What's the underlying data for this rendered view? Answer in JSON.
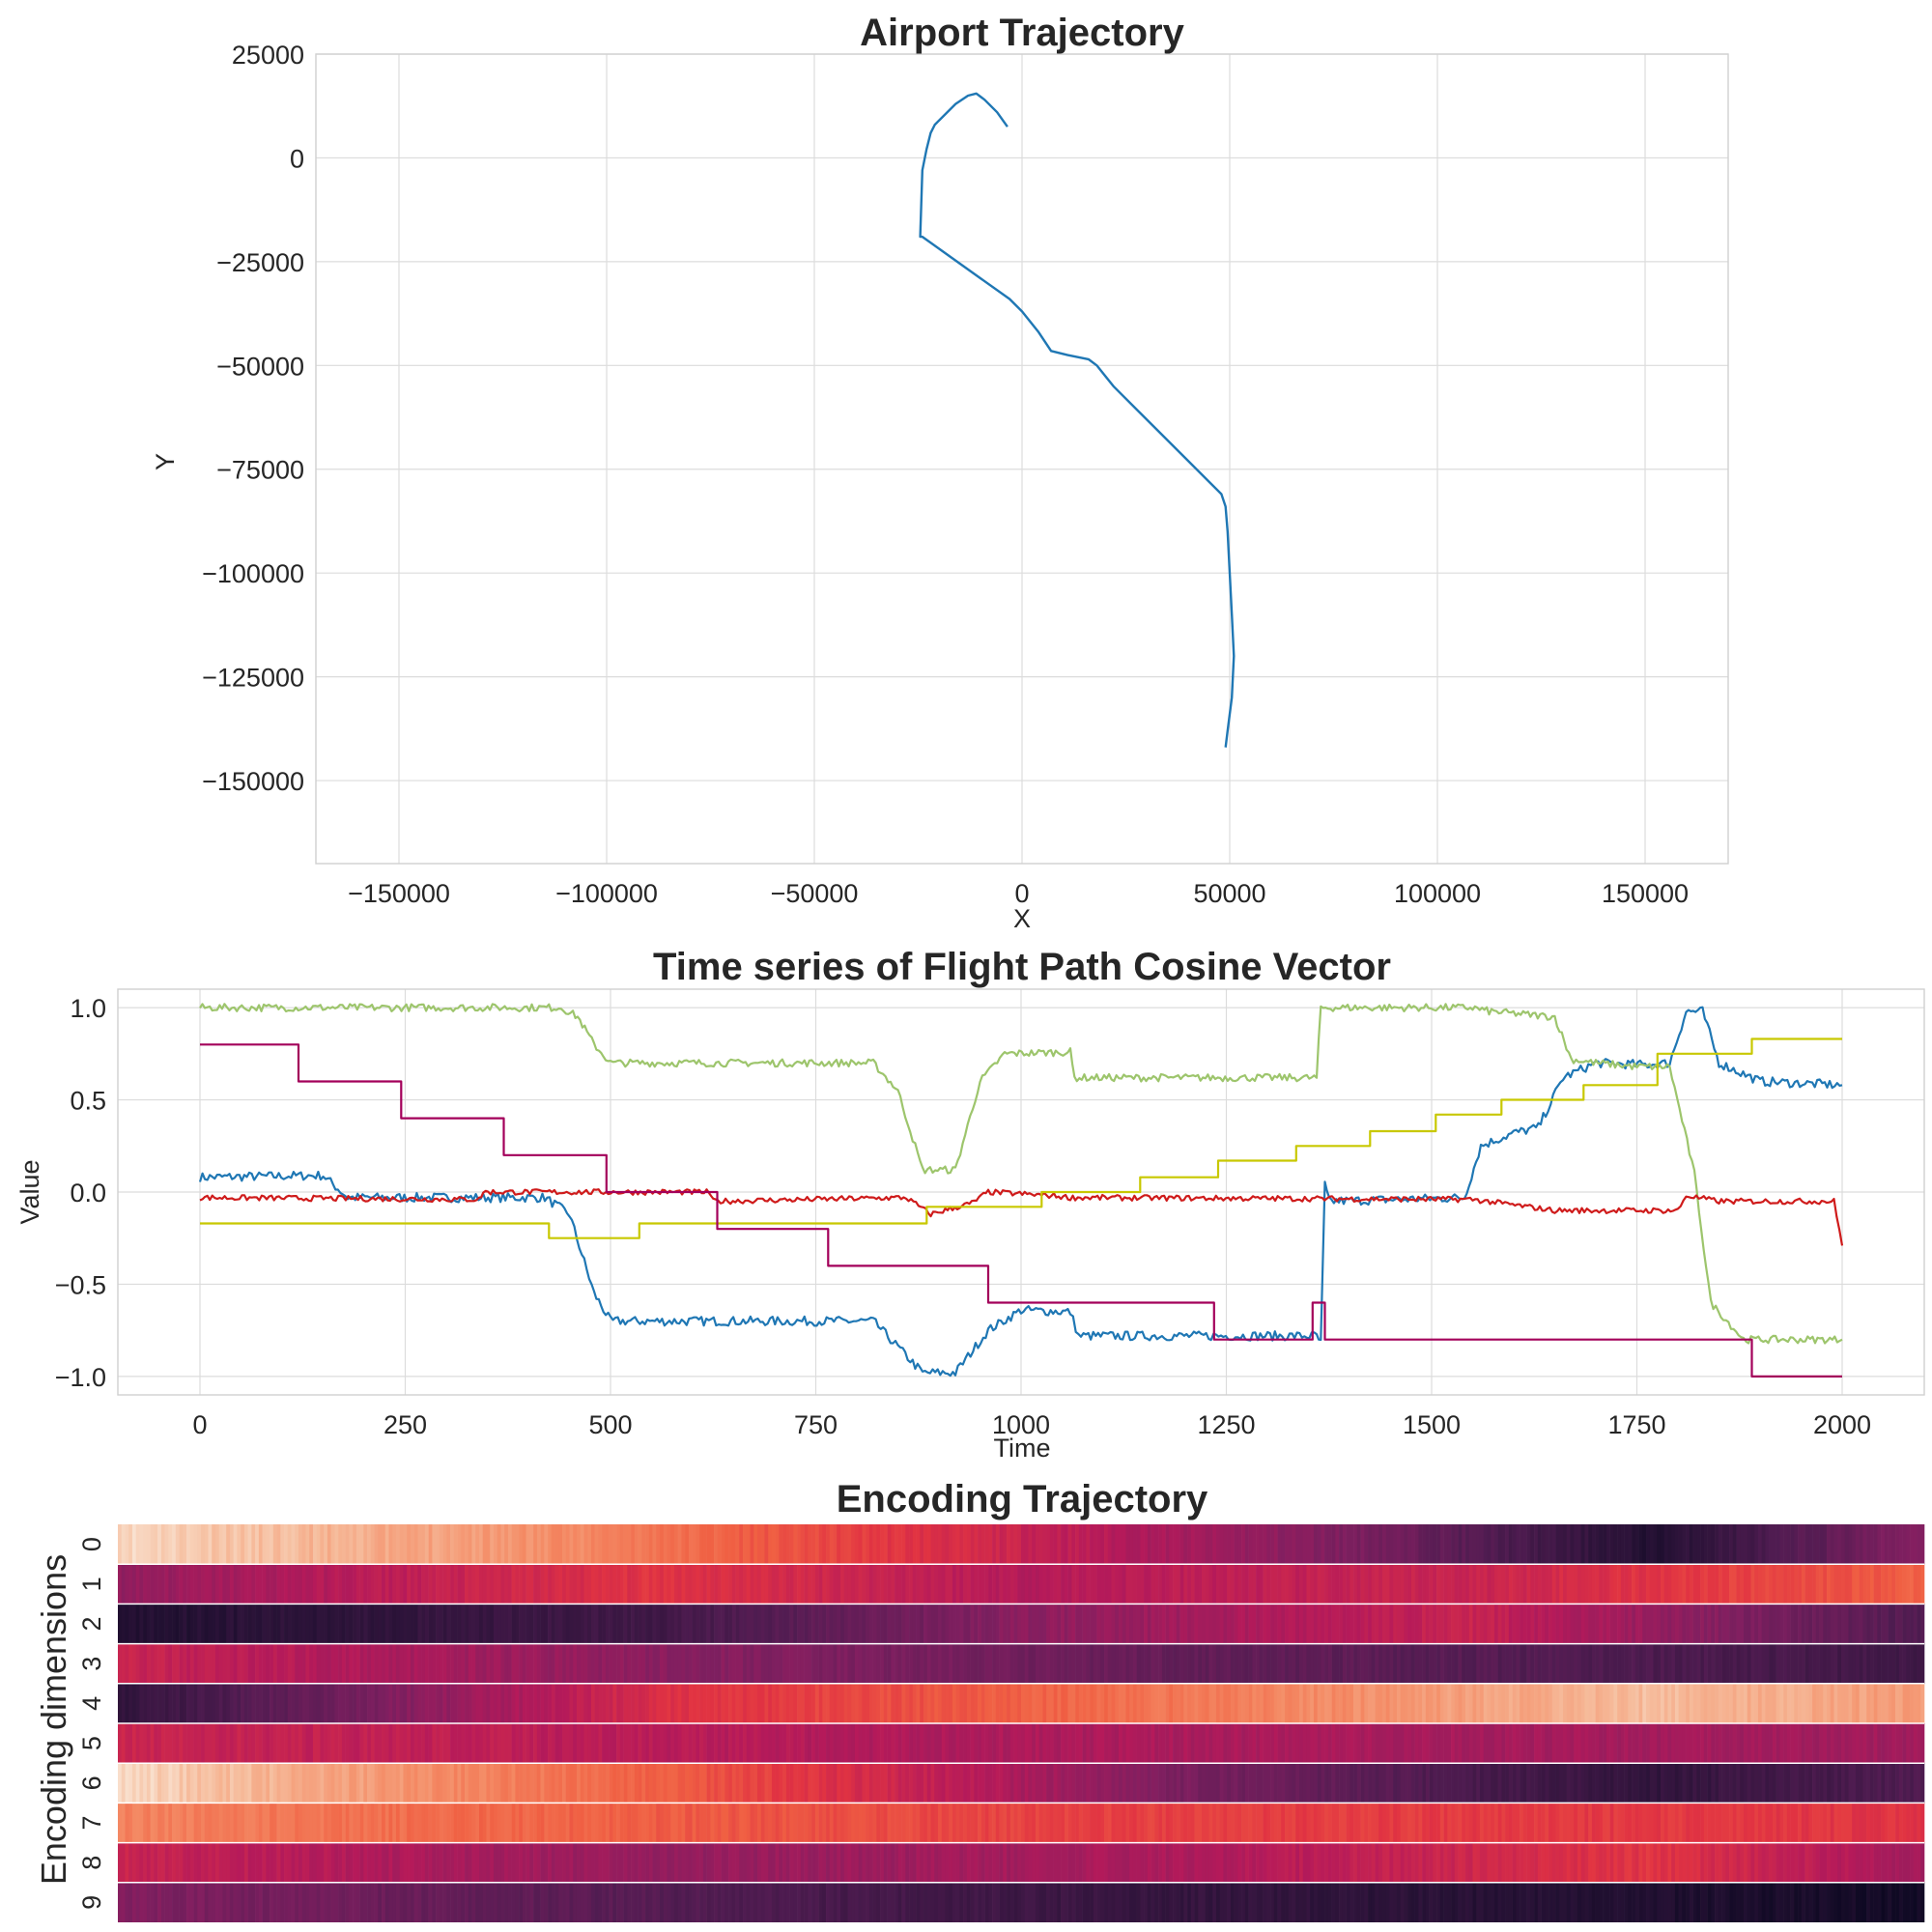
{
  "chart_data": [
    {
      "type": "line",
      "title": "Airport Trajectory",
      "xlabel": "X",
      "ylabel": "Y",
      "xlim": [
        -170000,
        170000
      ],
      "ylim": [
        -170000,
        25000
      ],
      "xticks": [
        -150000,
        -100000,
        -50000,
        0,
        50000,
        100000,
        150000
      ],
      "yticks": [
        25000,
        0,
        -25000,
        -50000,
        -75000,
        -100000,
        -125000,
        -150000
      ],
      "grid": true,
      "colors": {
        "trajectory": "#1f77b4"
      },
      "series": [
        {
          "x": [
            -3500,
            -6000,
            -9000,
            -11000,
            -13000,
            -16000,
            -21000,
            -22000,
            -23000,
            -24000,
            -24500,
            -24000,
            -17000,
            -10000,
            -3000,
            0,
            4000,
            7000,
            11000,
            16000,
            18000,
            22000,
            28000,
            34000,
            40000,
            45000,
            48000,
            49000,
            49500,
            50000,
            50500,
            51000,
            50500,
            49500,
            49000
          ],
          "y": [
            7500,
            11000,
            14000,
            15500,
            15000,
            13000,
            8000,
            6000,
            2000,
            -3000,
            -19000,
            -19000,
            -24000,
            -29000,
            -34000,
            -37000,
            -42000,
            -46500,
            -47500,
            -48500,
            -50000,
            -55000,
            -61000,
            -67000,
            -73000,
            -78000,
            -81000,
            -84000,
            -90000,
            -100000,
            -110000,
            -120000,
            -130000,
            -138000,
            -142000
          ]
        }
      ]
    },
    {
      "type": "line",
      "title": "Time series of Flight Path Cosine Vector",
      "xlabel": "Time",
      "ylabel": "Value",
      "xlim": [
        -100,
        2100
      ],
      "ylim": [
        -1.1,
        1.1
      ],
      "xticks": [
        0,
        250,
        500,
        750,
        1000,
        1250,
        1500,
        1750,
        2000
      ],
      "yticks": [
        1.0,
        0.5,
        0.0,
        -0.5,
        -1.0
      ],
      "grid": true,
      "series": [
        {
          "color": "#1f77b4",
          "noise": 0.025,
          "points": [
            [
              0,
              0.08
            ],
            [
              150,
              0.09
            ],
            [
              180,
              -0.03
            ],
            [
              420,
              -0.03
            ],
            [
              450,
              -0.12
            ],
            [
              480,
              -0.55
            ],
            [
              500,
              -0.7
            ],
            [
              820,
              -0.7
            ],
            [
              880,
              -0.98
            ],
            [
              920,
              -0.98
            ],
            [
              960,
              -0.75
            ],
            [
              1000,
              -0.64
            ],
            [
              1060,
              -0.65
            ],
            [
              1070,
              -0.78
            ],
            [
              1360,
              -0.78
            ],
            [
              1365,
              -0.82
            ],
            [
              1370,
              0.04
            ],
            [
              1375,
              -0.05
            ],
            [
              1540,
              -0.03
            ],
            [
              1560,
              0.25
            ],
            [
              1600,
              0.32
            ],
            [
              1630,
              0.35
            ],
            [
              1660,
              0.62
            ],
            [
              1700,
              0.7
            ],
            [
              1760,
              0.69
            ],
            [
              1790,
              0.7
            ],
            [
              1810,
              0.98
            ],
            [
              1830,
              0.98
            ],
            [
              1850,
              0.7
            ],
            [
              1900,
              0.6
            ],
            [
              2000,
              0.58
            ]
          ]
        },
        {
          "color": "#9dc56c",
          "noise": 0.02,
          "points": [
            [
              0,
              1.0
            ],
            [
              440,
              1.0
            ],
            [
              460,
              0.95
            ],
            [
              480,
              0.8
            ],
            [
              500,
              0.7
            ],
            [
              820,
              0.7
            ],
            [
              850,
              0.55
            ],
            [
              880,
              0.12
            ],
            [
              920,
              0.12
            ],
            [
              950,
              0.6
            ],
            [
              980,
              0.75
            ],
            [
              1060,
              0.76
            ],
            [
              1065,
              0.62
            ],
            [
              1360,
              0.62
            ],
            [
              1365,
              1.0
            ],
            [
              1550,
              1.0
            ],
            [
              1570,
              0.98
            ],
            [
              1650,
              0.95
            ],
            [
              1670,
              0.72
            ],
            [
              1700,
              0.7
            ],
            [
              1750,
              0.68
            ],
            [
              1790,
              0.68
            ],
            [
              1820,
              0.1
            ],
            [
              1840,
              -0.6
            ],
            [
              1880,
              -0.8
            ],
            [
              2000,
              -0.8
            ]
          ]
        },
        {
          "color": "#cf1b1b",
          "noise": 0.015,
          "points": [
            [
              0,
              -0.03
            ],
            [
              340,
              -0.04
            ],
            [
              345,
              0.0
            ],
            [
              620,
              0.0
            ],
            [
              625,
              -0.05
            ],
            [
              860,
              -0.03
            ],
            [
              890,
              -0.12
            ],
            [
              940,
              -0.06
            ],
            [
              960,
              0.0
            ],
            [
              1040,
              -0.02
            ],
            [
              1060,
              -0.03
            ],
            [
              1550,
              -0.04
            ],
            [
              1650,
              -0.1
            ],
            [
              1800,
              -0.1
            ],
            [
              1810,
              -0.02
            ],
            [
              1850,
              -0.05
            ],
            [
              1990,
              -0.05
            ],
            [
              2000,
              -0.29
            ]
          ]
        },
        {
          "color": "#c8c800",
          "noise": 0.0,
          "points": [
            [
              0,
              -0.17
            ],
            [
              425,
              -0.17
            ],
            [
              425,
              -0.25
            ],
            [
              535,
              -0.25
            ],
            [
              535,
              -0.17
            ],
            [
              885,
              -0.17
            ],
            [
              885,
              -0.08
            ],
            [
              1025,
              -0.08
            ],
            [
              1025,
              0.0
            ],
            [
              1145,
              0.0
            ],
            [
              1145,
              0.08
            ],
            [
              1240,
              0.08
            ],
            [
              1240,
              0.17
            ],
            [
              1335,
              0.17
            ],
            [
              1335,
              0.25
            ],
            [
              1425,
              0.25
            ],
            [
              1425,
              0.33
            ],
            [
              1505,
              0.33
            ],
            [
              1505,
              0.42
            ],
            [
              1585,
              0.42
            ],
            [
              1585,
              0.5
            ],
            [
              1685,
              0.5
            ],
            [
              1685,
              0.58
            ],
            [
              1775,
              0.58
            ],
            [
              1775,
              0.75
            ],
            [
              1890,
              0.75
            ],
            [
              1890,
              0.83
            ],
            [
              2000,
              0.83
            ]
          ]
        },
        {
          "color": "#a3005a",
          "noise": 0.0,
          "points": [
            [
              0,
              0.8
            ],
            [
              120,
              0.8
            ],
            [
              120,
              0.6
            ],
            [
              245,
              0.6
            ],
            [
              245,
              0.4
            ],
            [
              370,
              0.4
            ],
            [
              370,
              0.2
            ],
            [
              495,
              0.2
            ],
            [
              495,
              0.0
            ],
            [
              630,
              0.0
            ],
            [
              630,
              -0.2
            ],
            [
              765,
              -0.2
            ],
            [
              765,
              -0.4
            ],
            [
              960,
              -0.4
            ],
            [
              960,
              -0.6
            ],
            [
              1235,
              -0.6
            ],
            [
              1235,
              -0.8
            ],
            [
              1355,
              -0.8
            ],
            [
              1355,
              -0.6
            ],
            [
              1370,
              -0.6
            ],
            [
              1370,
              -0.8
            ],
            [
              1890,
              -0.8
            ],
            [
              1890,
              -1.0
            ],
            [
              2000,
              -1.0
            ]
          ]
        }
      ]
    },
    {
      "type": "heatmap",
      "title": "Encoding Trajectory",
      "ylabel": "Encoding dimensions",
      "rows": [
        "0",
        "1",
        "2",
        "3",
        "4",
        "5",
        "6",
        "7",
        "8",
        "9"
      ],
      "columns": 500,
      "colormap": "rocket",
      "row_profiles": [
        [
          [
            0,
            0.97
          ],
          [
            0.25,
            0.82
          ],
          [
            0.45,
            0.6
          ],
          [
            0.7,
            0.35
          ],
          [
            0.85,
            0.1
          ],
          [
            1,
            0.4
          ]
        ],
        [
          [
            0,
            0.42
          ],
          [
            0.3,
            0.62
          ],
          [
            0.5,
            0.5
          ],
          [
            0.75,
            0.55
          ],
          [
            1,
            0.72
          ]
        ],
        [
          [
            0,
            0.1
          ],
          [
            0.3,
            0.2
          ],
          [
            0.5,
            0.4
          ],
          [
            0.75,
            0.55
          ],
          [
            1,
            0.25
          ]
        ],
        [
          [
            0,
            0.55
          ],
          [
            0.3,
            0.4
          ],
          [
            0.6,
            0.3
          ],
          [
            1,
            0.2
          ]
        ],
        [
          [
            0,
            0.15
          ],
          [
            0.3,
            0.6
          ],
          [
            0.6,
            0.78
          ],
          [
            0.85,
            0.92
          ],
          [
            1,
            0.85
          ]
        ],
        [
          [
            0,
            0.55
          ],
          [
            0.5,
            0.48
          ],
          [
            1,
            0.45
          ]
        ],
        [
          [
            0,
            0.97
          ],
          [
            0.3,
            0.72
          ],
          [
            0.6,
            0.35
          ],
          [
            0.85,
            0.15
          ],
          [
            1,
            0.25
          ]
        ],
        [
          [
            0,
            0.8
          ],
          [
            0.5,
            0.65
          ],
          [
            1,
            0.62
          ]
        ],
        [
          [
            0,
            0.55
          ],
          [
            0.3,
            0.42
          ],
          [
            0.6,
            0.48
          ],
          [
            0.85,
            0.62
          ],
          [
            1,
            0.45
          ]
        ],
        [
          [
            0,
            0.38
          ],
          [
            0.45,
            0.2
          ],
          [
            0.75,
            0.12
          ],
          [
            1,
            0.05
          ]
        ]
      ]
    }
  ]
}
